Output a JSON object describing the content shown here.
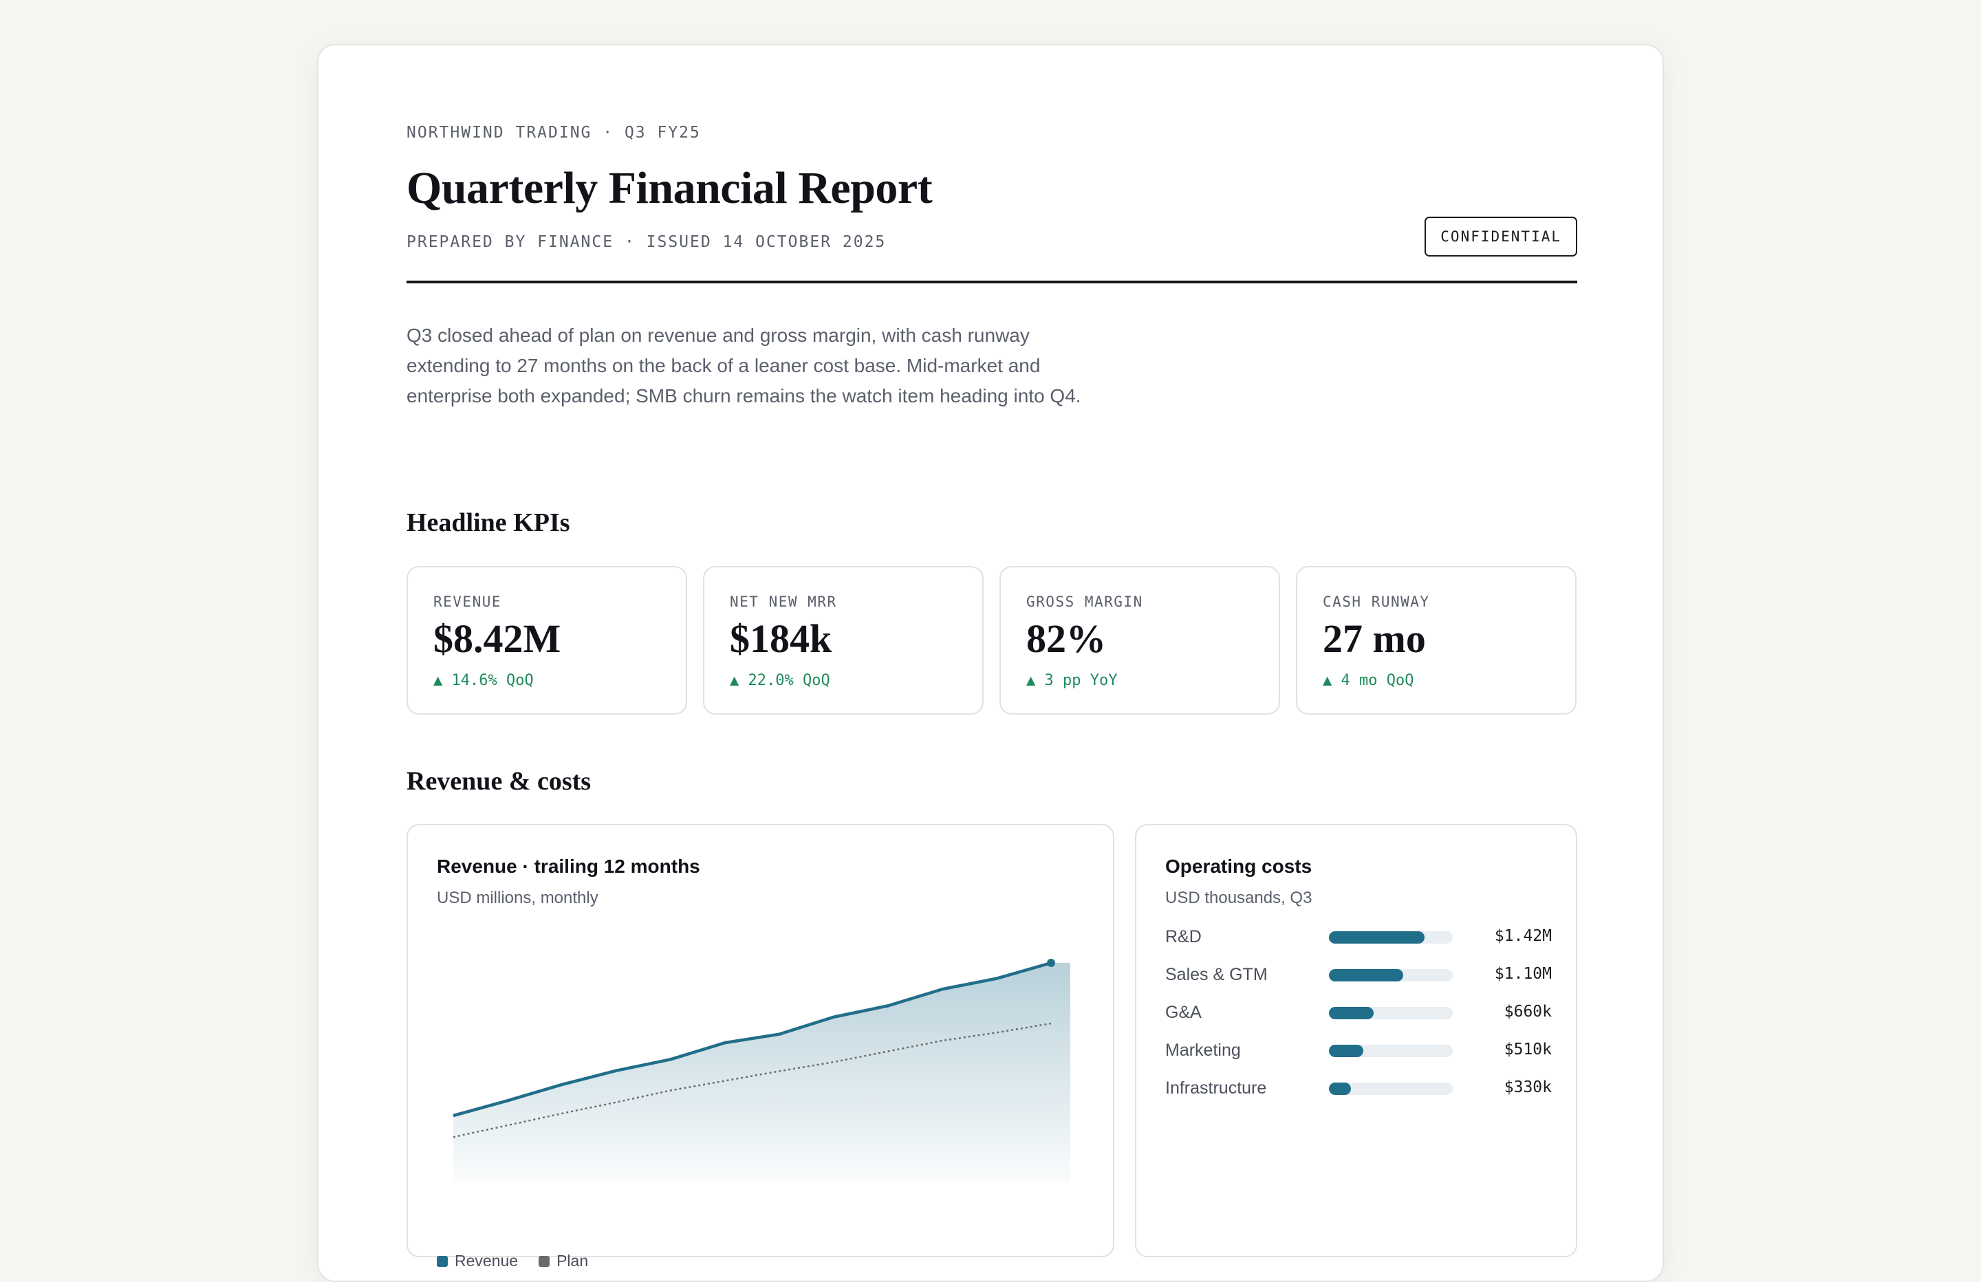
{
  "header": {
    "eyebrow": "NORTHWIND TRADING · Q3 FY25",
    "title": "Quarterly Financial Report",
    "meta": "PREPARED BY FINANCE · ISSUED 14 OCTOBER 2025",
    "badge": "CONFIDENTIAL"
  },
  "summary": "Q3 closed ahead of plan on revenue and gross margin, with cash runway extending to 27 months on the back of a leaner cost base. Mid-market and enterprise both expanded; SMB churn remains the watch item heading into Q4.",
  "kpi_section": {
    "heading": "Headline KPIs",
    "items": [
      {
        "label": "REVENUE",
        "value": "$8.42M",
        "delta": "▲ 14.6% QoQ"
      },
      {
        "label": "NET NEW MRR",
        "value": "$184k",
        "delta": "▲ 22.0% QoQ"
      },
      {
        "label": "GROSS MARGIN",
        "value": "82%",
        "delta": "▲ 3 pp YoY"
      },
      {
        "label": "CASH RUNWAY",
        "value": "27 mo",
        "delta": "▲ 4 mo QoQ"
      }
    ]
  },
  "revenue_section": {
    "heading": "Revenue & costs"
  },
  "colors": {
    "accent": "#216e8a",
    "positive": "#1f8a5b",
    "plan": "#6b6b6b"
  },
  "chart_data": [
    {
      "type": "area",
      "title": "Revenue · trailing 12 months",
      "subtitle": "USD millions, monthly",
      "x": [
        1,
        2,
        3,
        4,
        5,
        6,
        7,
        8,
        9,
        10,
        11,
        12
      ],
      "series": [
        {
          "name": "Revenue",
          "values": [
            1.0,
            1.28,
            1.58,
            1.84,
            2.05,
            2.36,
            2.52,
            2.84,
            3.05,
            3.36,
            3.56,
            3.85
          ],
          "color": "#216e8a"
        },
        {
          "name": "Plan",
          "values": [
            0.6,
            0.82,
            1.04,
            1.25,
            1.47,
            1.65,
            1.83,
            2.0,
            2.2,
            2.4,
            2.55,
            2.72
          ],
          "color": "#6b6b6b",
          "style": "dotted"
        }
      ],
      "ylim": [
        0,
        4.3
      ],
      "grid": false,
      "legend": "bottom-left"
    },
    {
      "type": "bar",
      "title": "Operating costs",
      "subtitle": "USD thousands, Q3",
      "categories": [
        "R&D",
        "Sales & GTM",
        "G&A",
        "Marketing",
        "Infrastructure"
      ],
      "values": [
        1420,
        1100,
        660,
        510,
        330
      ],
      "value_labels": [
        "$1.42M",
        "$1.10M",
        "$660k",
        "$510k",
        "$330k"
      ],
      "xlim": [
        0,
        1840
      ],
      "orientation": "horizontal"
    }
  ]
}
